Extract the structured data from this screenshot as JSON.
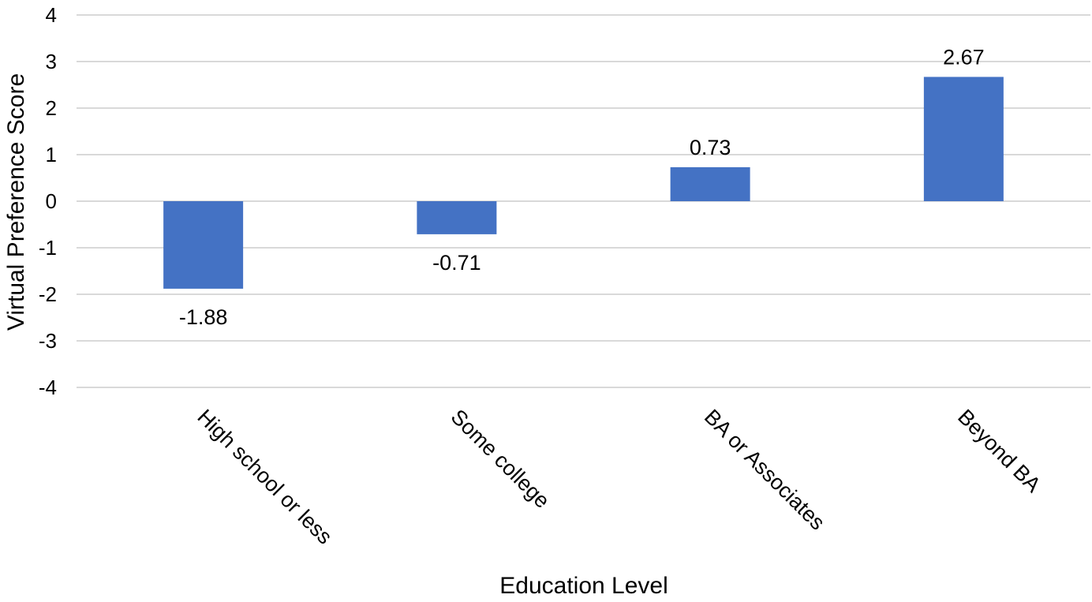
{
  "chart_data": {
    "type": "bar",
    "categories": [
      "High school or less",
      "Some college",
      "BA or Associates",
      "Beyond BA"
    ],
    "values": [
      -1.88,
      -0.71,
      0.73,
      2.67
    ],
    "data_labels": [
      "-1.88",
      "-0.71",
      "0.73",
      "2.67"
    ],
    "xlabel": "Education Level",
    "ylabel": "Virtual Preference Score",
    "ylim": [
      -4,
      4
    ],
    "yticks": [
      4,
      3,
      2,
      1,
      0,
      -1,
      -2,
      -3,
      -4
    ],
    "ytick_labels": [
      "4",
      "3",
      "2",
      "1",
      "0",
      "-1",
      "-2",
      "-3",
      "-4"
    ],
    "grid": true,
    "legend": "none",
    "bar_color": "#4472c4"
  }
}
